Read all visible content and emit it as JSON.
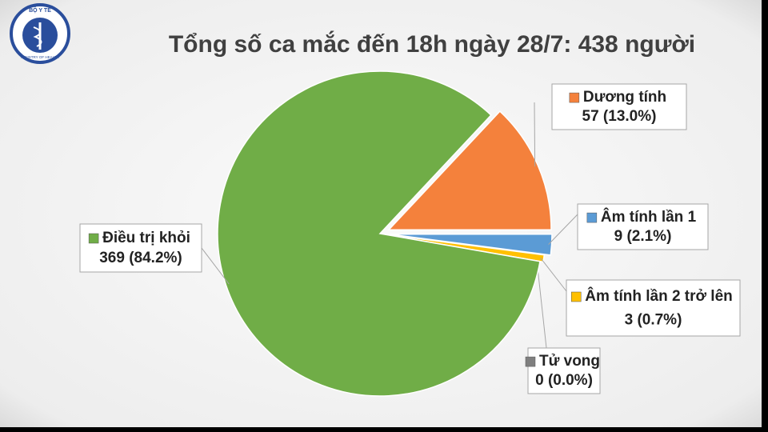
{
  "logo": {
    "top": "BỘ Y TẾ",
    "bottom": "MINISTRY OF HEALTH"
  },
  "chart_data": {
    "type": "pie",
    "title": "Tổng số ca mắc đến 18h ngày 28/7: 438 người",
    "categories": [
      "Dương tính",
      "Âm tính lần 1",
      "Âm tính lần 2 trở lên",
      "Tử vong",
      "Điều trị khỏi"
    ],
    "values": [
      57,
      9,
      3,
      0,
      369
    ],
    "value_labels": [
      "57 (13.0%)",
      "9 (2.1%)",
      "3 (0.7%)",
      "0 (0.0%)",
      "369 (84.2%)"
    ],
    "colors": [
      "#f4813c",
      "#5b9bd5",
      "#ffc000",
      "#7f7f7f",
      "#70ad47"
    ]
  }
}
